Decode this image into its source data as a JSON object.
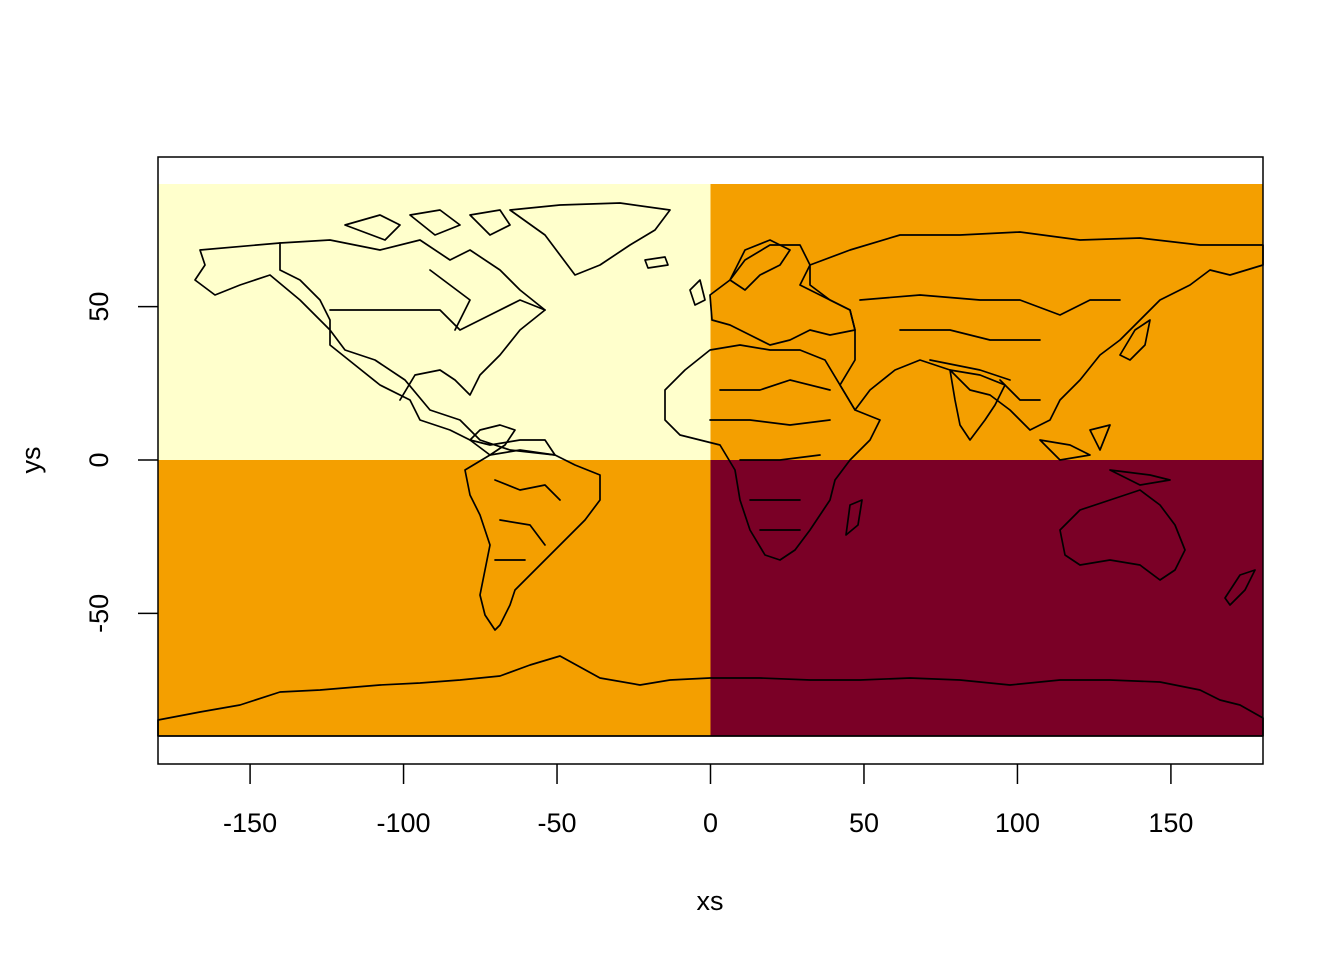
{
  "chart_data": {
    "type": "heatmap",
    "xlabel": "xs",
    "ylabel": "ys",
    "xlim": [
      -180,
      180
    ],
    "ylim": [
      -90,
      90
    ],
    "x_ticks": [
      -150,
      -100,
      -50,
      0,
      50,
      100,
      150
    ],
    "x_tick_labels": [
      "-150",
      "-100",
      "-50",
      "0",
      "50",
      "100",
      "150"
    ],
    "y_ticks": [
      -50,
      0,
      50
    ],
    "y_tick_labels": [
      "-50",
      "0",
      "50"
    ],
    "cells": [
      {
        "x0": -180,
        "x1": 0,
        "y0": 0,
        "y1": 90,
        "color": "#FFFFCC"
      },
      {
        "x0": 0,
        "x1": 180,
        "y0": 0,
        "y1": 90,
        "color": "#F49F00"
      },
      {
        "x0": -180,
        "x1": 0,
        "y0": -90,
        "y1": 0,
        "color": "#F49F00"
      },
      {
        "x0": 0,
        "x1": 180,
        "y0": -90,
        "y1": 0,
        "color": "#7A0026"
      }
    ],
    "overlay": "world country borders",
    "grid": false,
    "legend": "none"
  }
}
